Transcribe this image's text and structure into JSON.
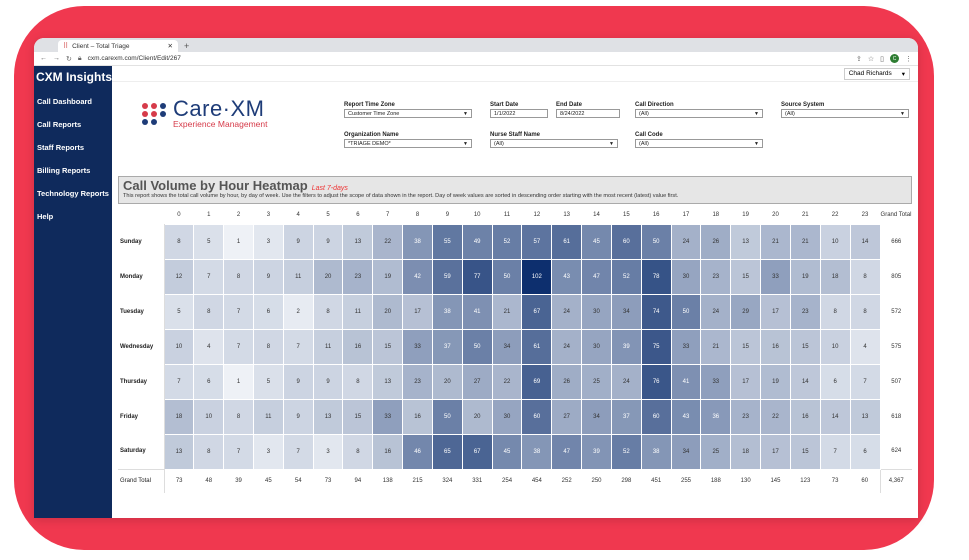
{
  "browser": {
    "tab_title": "Client – Total Triage",
    "new_tab": "+",
    "url": "cxm.carexm.com/Client/Edit/267"
  },
  "sidebar": {
    "brand": "CXM Insights",
    "items": [
      {
        "label": "Call Dashboard"
      },
      {
        "label": "Call Reports"
      },
      {
        "label": "Staff Reports"
      },
      {
        "label": "Billing Reports"
      },
      {
        "label": "Technology Reports"
      },
      {
        "label": "Help"
      }
    ]
  },
  "user": {
    "name": "Chad Richards",
    "avatar_letter": "C"
  },
  "logo": {
    "title": "Care·XM",
    "subtitle": "Experience Management"
  },
  "filters": {
    "report_time_zone": {
      "label": "Report Time Zone",
      "value": "Customer Time Zone"
    },
    "start_date": {
      "label": "Start Date",
      "value": "1/1/2022"
    },
    "end_date": {
      "label": "End Date",
      "value": "8/24/2022"
    },
    "call_direction": {
      "label": "Call Direction",
      "value": "(All)"
    },
    "source_system": {
      "label": "Source System",
      "value": "(All)"
    },
    "organization_name": {
      "label": "Organization Name",
      "value": "*TRIAGE DEMO*"
    },
    "nurse_staff_name": {
      "label": "Nurse Staff Name",
      "value": "(All)"
    },
    "call_code": {
      "label": "Call Code",
      "value": "(All)"
    }
  },
  "report": {
    "title": "Call Volume by Hour Heatmap",
    "subtitle": "Last 7-days",
    "description": "This report shows the total call volume by hour, by day of week. Use the filters to adjust the scope of data shown in the report. Day of week values are sorted in descending order starting with the most recent (latest) value first."
  },
  "colors": {
    "brand_red": "#f0384f",
    "sidebar": "#0f2a5c",
    "heat_low": "#eef1f6",
    "heat_high": "#0d2f6e"
  },
  "chart_data": {
    "type": "heatmap",
    "hours": [
      "0",
      "1",
      "2",
      "3",
      "4",
      "5",
      "6",
      "7",
      "8",
      "9",
      "10",
      "11",
      "12",
      "13",
      "14",
      "15",
      "16",
      "17",
      "18",
      "19",
      "20",
      "21",
      "22",
      "23"
    ],
    "total_label": "Grand Total",
    "rows": [
      {
        "day": "Sunday",
        "values": [
          8,
          5,
          1,
          3,
          9,
          9,
          13,
          22,
          38,
          55,
          49,
          52,
          57,
          61,
          45,
          60,
          50,
          24,
          26,
          13,
          21,
          21,
          10,
          14
        ],
        "total": "666"
      },
      {
        "day": "Monday",
        "values": [
          12,
          7,
          8,
          9,
          11,
          20,
          23,
          19,
          42,
          59,
          77,
          50,
          102,
          43,
          47,
          52,
          78,
          30,
          23,
          15,
          33,
          19,
          18,
          8
        ],
        "total": "805"
      },
      {
        "day": "Tuesday",
        "values": [
          5,
          8,
          7,
          6,
          2,
          8,
          11,
          20,
          17,
          38,
          41,
          21,
          67,
          24,
          30,
          34,
          74,
          50,
          24,
          29,
          17,
          23,
          8,
          8
        ],
        "total": "572"
      },
      {
        "day": "Wednesday",
        "values": [
          10,
          4,
          7,
          8,
          7,
          11,
          16,
          15,
          33,
          37,
          50,
          34,
          61,
          24,
          30,
          39,
          75,
          33,
          21,
          15,
          16,
          15,
          10,
          4
        ],
        "total": "575"
      },
      {
        "day": "Thursday",
        "values": [
          7,
          6,
          1,
          5,
          9,
          9,
          8,
          13,
          23,
          20,
          27,
          22,
          69,
          26,
          25,
          24,
          76,
          41,
          33,
          17,
          19,
          14,
          6,
          7
        ],
        "total": "507"
      },
      {
        "day": "Friday",
        "values": [
          18,
          10,
          8,
          11,
          9,
          13,
          15,
          33,
          16,
          50,
          20,
          30,
          60,
          27,
          34,
          37,
          60,
          43,
          36,
          23,
          22,
          16,
          14,
          13
        ],
        "total": "618"
      },
      {
        "day": "Saturday",
        "values": [
          13,
          8,
          7,
          3,
          7,
          3,
          8,
          16,
          46,
          65,
          67,
          45,
          38,
          47,
          39,
          52,
          38,
          34,
          25,
          18,
          17,
          15,
          7,
          6
        ],
        "total": "624"
      }
    ],
    "grand_total_row": {
      "label": "Grand Total",
      "values": [
        "73",
        "48",
        "39",
        "45",
        "54",
        "73",
        "94",
        "138",
        "215",
        "324",
        "331",
        "254",
        "454",
        "252",
        "250",
        "298",
        "451",
        "255",
        "188",
        "130",
        "145",
        "123",
        "73",
        "60"
      ],
      "total": "4,367"
    },
    "value_range": [
      1,
      102
    ]
  }
}
